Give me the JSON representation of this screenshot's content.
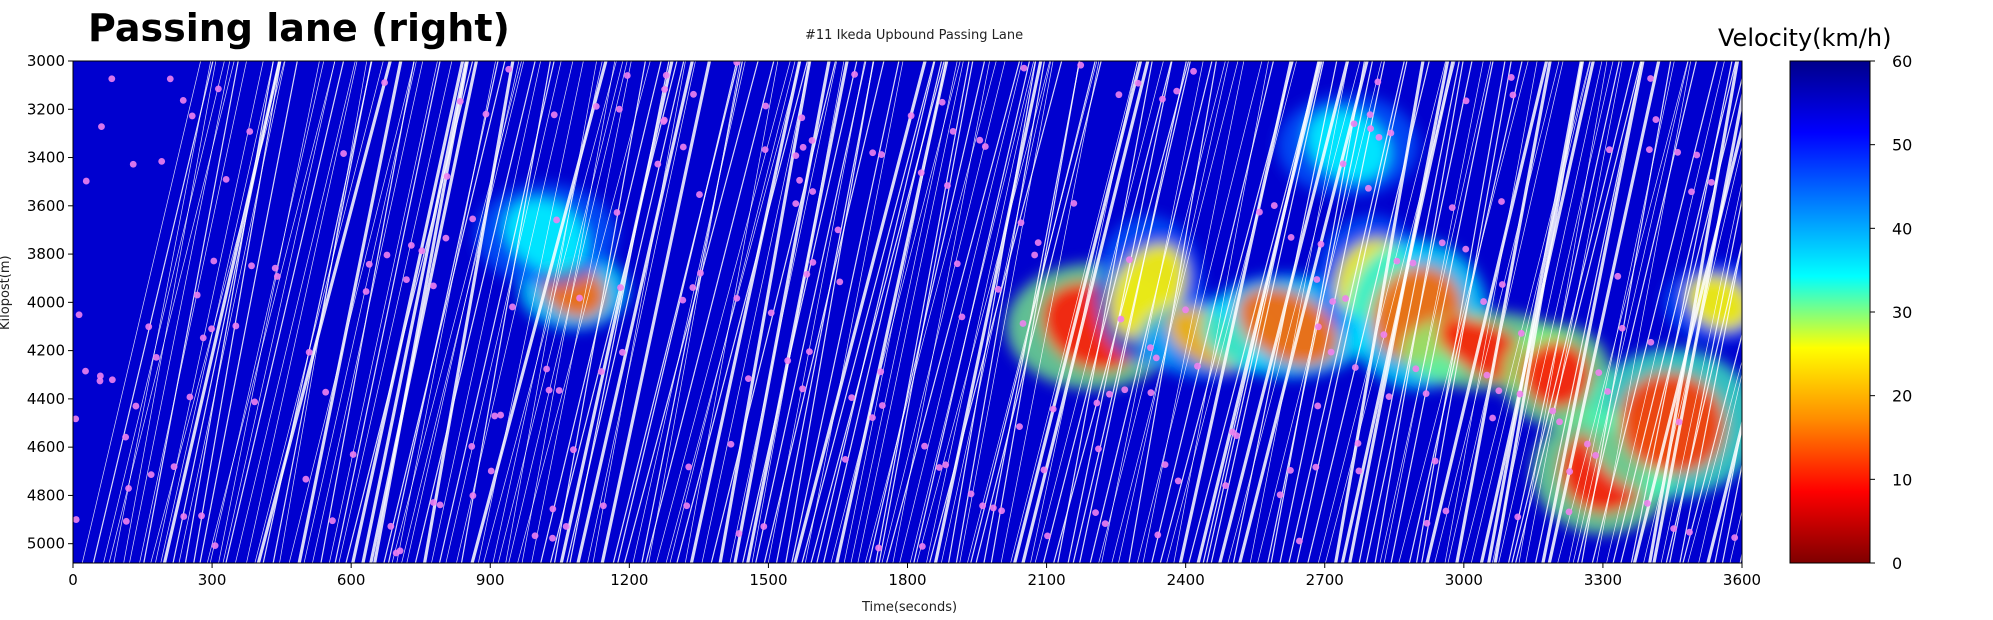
{
  "headline": "Passing lane (right)",
  "colorbar": {
    "title": "Velocity(km/h)",
    "range": [
      0,
      60
    ],
    "ticks": [
      "0",
      "10",
      "20",
      "30",
      "40",
      "50",
      "60"
    ],
    "colormap": [
      "#7f0000",
      "#ff0000",
      "#ff8c00",
      "#ffff00",
      "#00ffff",
      "#0080ff",
      "#0000ff",
      "#00008b"
    ]
  },
  "chart_data": {
    "type": "heatmap",
    "title": "#11 Ikeda Upbound Passing Lane",
    "xlabel": "Time(seconds)",
    "ylabel": "Kilopost(m)",
    "xlim": [
      0,
      3600
    ],
    "ylim": [
      3000,
      5080
    ],
    "y_inverted": true,
    "x_ticks": [
      "0",
      "300",
      "600",
      "900",
      "1200",
      "1500",
      "1800",
      "2100",
      "2400",
      "2700",
      "3000",
      "3300",
      "3600"
    ],
    "y_ticks": [
      "3000",
      "3200",
      "3400",
      "3600",
      "3800",
      "4000",
      "4200",
      "4400",
      "4600",
      "4800",
      "5000"
    ],
    "background_velocity_kmh": 55,
    "congestion_regions": [
      {
        "t": 1080,
        "k": 3950,
        "velocity": 15
      },
      {
        "t": 1020,
        "k": 3720,
        "velocity": 35
      },
      {
        "t": 2200,
        "k": 4100,
        "velocity": 10
      },
      {
        "t": 2320,
        "k": 3950,
        "velocity": 25
      },
      {
        "t": 2450,
        "k": 4150,
        "velocity": 20
      },
      {
        "t": 2620,
        "k": 4100,
        "velocity": 15
      },
      {
        "t": 2800,
        "k": 3900,
        "velocity": 25
      },
      {
        "t": 2900,
        "k": 4050,
        "velocity": 15
      },
      {
        "t": 3050,
        "k": 4200,
        "velocity": 10
      },
      {
        "t": 3200,
        "k": 4300,
        "velocity": 10
      },
      {
        "t": 3300,
        "k": 4700,
        "velocity": 10
      },
      {
        "t": 3450,
        "k": 4500,
        "velocity": 12
      },
      {
        "t": 3550,
        "k": 4000,
        "velocity": 25
      },
      {
        "t": 2750,
        "k": 3350,
        "velocity": 35
      }
    ],
    "series": [
      {
        "name": "vehicle trajectories",
        "velocity_kmh": 55
      },
      {
        "name": "lane-change points",
        "color": "#ee82ee"
      }
    ]
  }
}
